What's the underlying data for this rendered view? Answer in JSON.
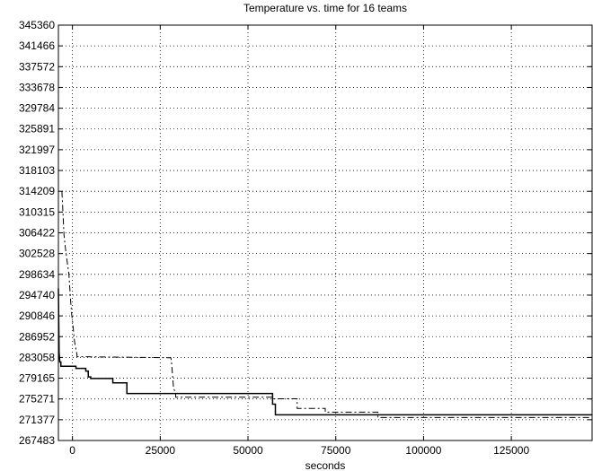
{
  "chart_data": {
    "type": "line",
    "title": "Temperature vs. time for 16 teams",
    "xlabel": "seconds",
    "ylabel": "",
    "xlim": [
      -4000,
      148000
    ],
    "ylim": [
      267483,
      345360
    ],
    "grid": true,
    "xticks": [
      0,
      25000,
      50000,
      75000,
      100000,
      125000
    ],
    "xtick_labels": [
      "0",
      "25000",
      "50000",
      "75000",
      "100000",
      "125000"
    ],
    "yticks": [
      267483,
      271377,
      275271,
      279165,
      283058,
      286952,
      290846,
      294740,
      298634,
      302528,
      306422,
      310315,
      314209,
      318103,
      321997,
      325891,
      329784,
      333678,
      337572,
      341466,
      345360
    ],
    "ytick_labels": [
      "267483",
      "271377",
      "275271",
      "279165",
      "283058",
      "286952",
      "290846",
      "294740",
      "298634",
      "302528",
      "306422",
      "310315",
      "314209",
      "318103",
      "321997",
      "325891",
      "329784",
      "333678",
      "337572",
      "341466",
      "345360"
    ],
    "series": [
      {
        "style": "solid",
        "color": "#000000",
        "x": [
          -4000,
          -3800,
          -3600,
          -3300,
          -3300,
          1000,
          1000,
          3800,
          3800,
          4500,
          4500,
          5200,
          5200,
          11500,
          11500,
          15500,
          15500,
          57000,
          57000,
          57800,
          57800,
          148000
        ],
        "y": [
          296000,
          284000,
          282200,
          282200,
          281400,
          281400,
          281000,
          281000,
          280500,
          280500,
          279400,
          279400,
          279100,
          279100,
          278300,
          278300,
          276300,
          276300,
          274300,
          274300,
          272300,
          272300
        ]
      },
      {
        "style": "dash-dot",
        "color": "#000000",
        "x": [
          -3000,
          -2800,
          -2400,
          -2000,
          -1500,
          -1000,
          -500,
          -200,
          0,
          600,
          1300,
          1300,
          28000,
          28200,
          28800,
          29400,
          29400,
          57000,
          57000,
          64000,
          64000,
          72000,
          72000,
          87000,
          87000,
          148000
        ],
        "y": [
          314200,
          311500,
          306000,
          303500,
          301000,
          298600,
          293500,
          291000,
          290000,
          286000,
          283600,
          283200,
          283000,
          282400,
          277200,
          276500,
          275600,
          275600,
          275300,
          275300,
          273500,
          273500,
          272800,
          272800,
          271800,
          271800
        ]
      }
    ]
  }
}
